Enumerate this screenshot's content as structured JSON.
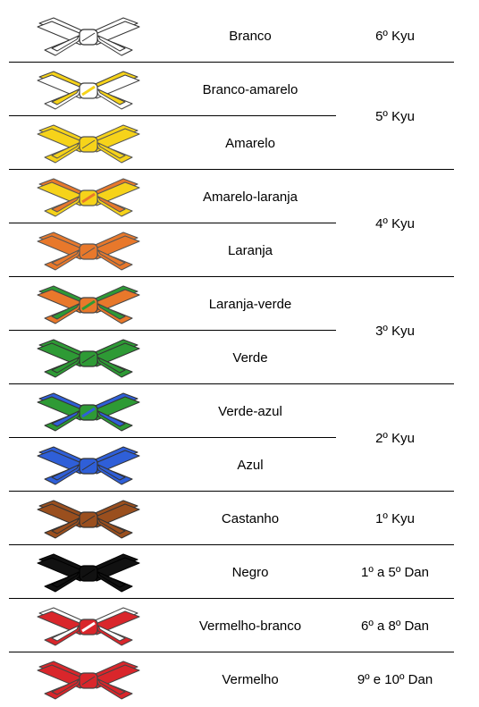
{
  "belts": [
    {
      "name": "Branco",
      "a": "#ffffff",
      "b": "#ffffff",
      "stroke": "#333333"
    },
    {
      "name": "Branco-amarelo",
      "a": "#ffffff",
      "b": "#f6d31a",
      "stroke": "#444444"
    },
    {
      "name": "Amarelo",
      "a": "#f6d31a",
      "b": "#f6d31a",
      "stroke": "#555555"
    },
    {
      "name": "Amarelo-laranja",
      "a": "#f6d31a",
      "b": "#e8782b",
      "stroke": "#555555"
    },
    {
      "name": "Laranja",
      "a": "#e8782b",
      "b": "#e8782b",
      "stroke": "#555555"
    },
    {
      "name": "Laranja-verde",
      "a": "#e8782b",
      "b": "#2e9a35",
      "stroke": "#444444"
    },
    {
      "name": "Verde",
      "a": "#2e9a35",
      "b": "#2e9a35",
      "stroke": "#333333"
    },
    {
      "name": "Verde-azul",
      "a": "#2e9a35",
      "b": "#2f5fd8",
      "stroke": "#333333"
    },
    {
      "name": "Azul",
      "a": "#2f5fd8",
      "b": "#2f5fd8",
      "stroke": "#333333"
    },
    {
      "name": "Castanho",
      "a": "#9a4f1e",
      "b": "#9a4f1e",
      "stroke": "#333333"
    },
    {
      "name": "Negro",
      "a": "#111111",
      "b": "#111111",
      "stroke": "#000000"
    },
    {
      "name": "Vermelho-branco",
      "a": "#d9262b",
      "b": "#ffffff",
      "stroke": "#444444"
    },
    {
      "name": "Vermelho",
      "a": "#d9262b",
      "b": "#d9262b",
      "stroke": "#444444"
    }
  ],
  "grades": [
    {
      "label": "6º Kyu",
      "belts_covered": 1
    },
    {
      "label": "5º Kyu",
      "belts_covered": 2
    },
    {
      "label": "4º Kyu",
      "belts_covered": 2
    },
    {
      "label": "3º Kyu",
      "belts_covered": 2
    },
    {
      "label": "2º Kyu",
      "belts_covered": 2
    },
    {
      "label": "1º Kyu",
      "belts_covered": 1
    },
    {
      "label": "1º a 5º Dan",
      "belts_covered": 1
    },
    {
      "label": "6º a 8º Dan",
      "belts_covered": 1
    },
    {
      "label": "9º e 10º Dan",
      "belts_covered": 1
    }
  ]
}
